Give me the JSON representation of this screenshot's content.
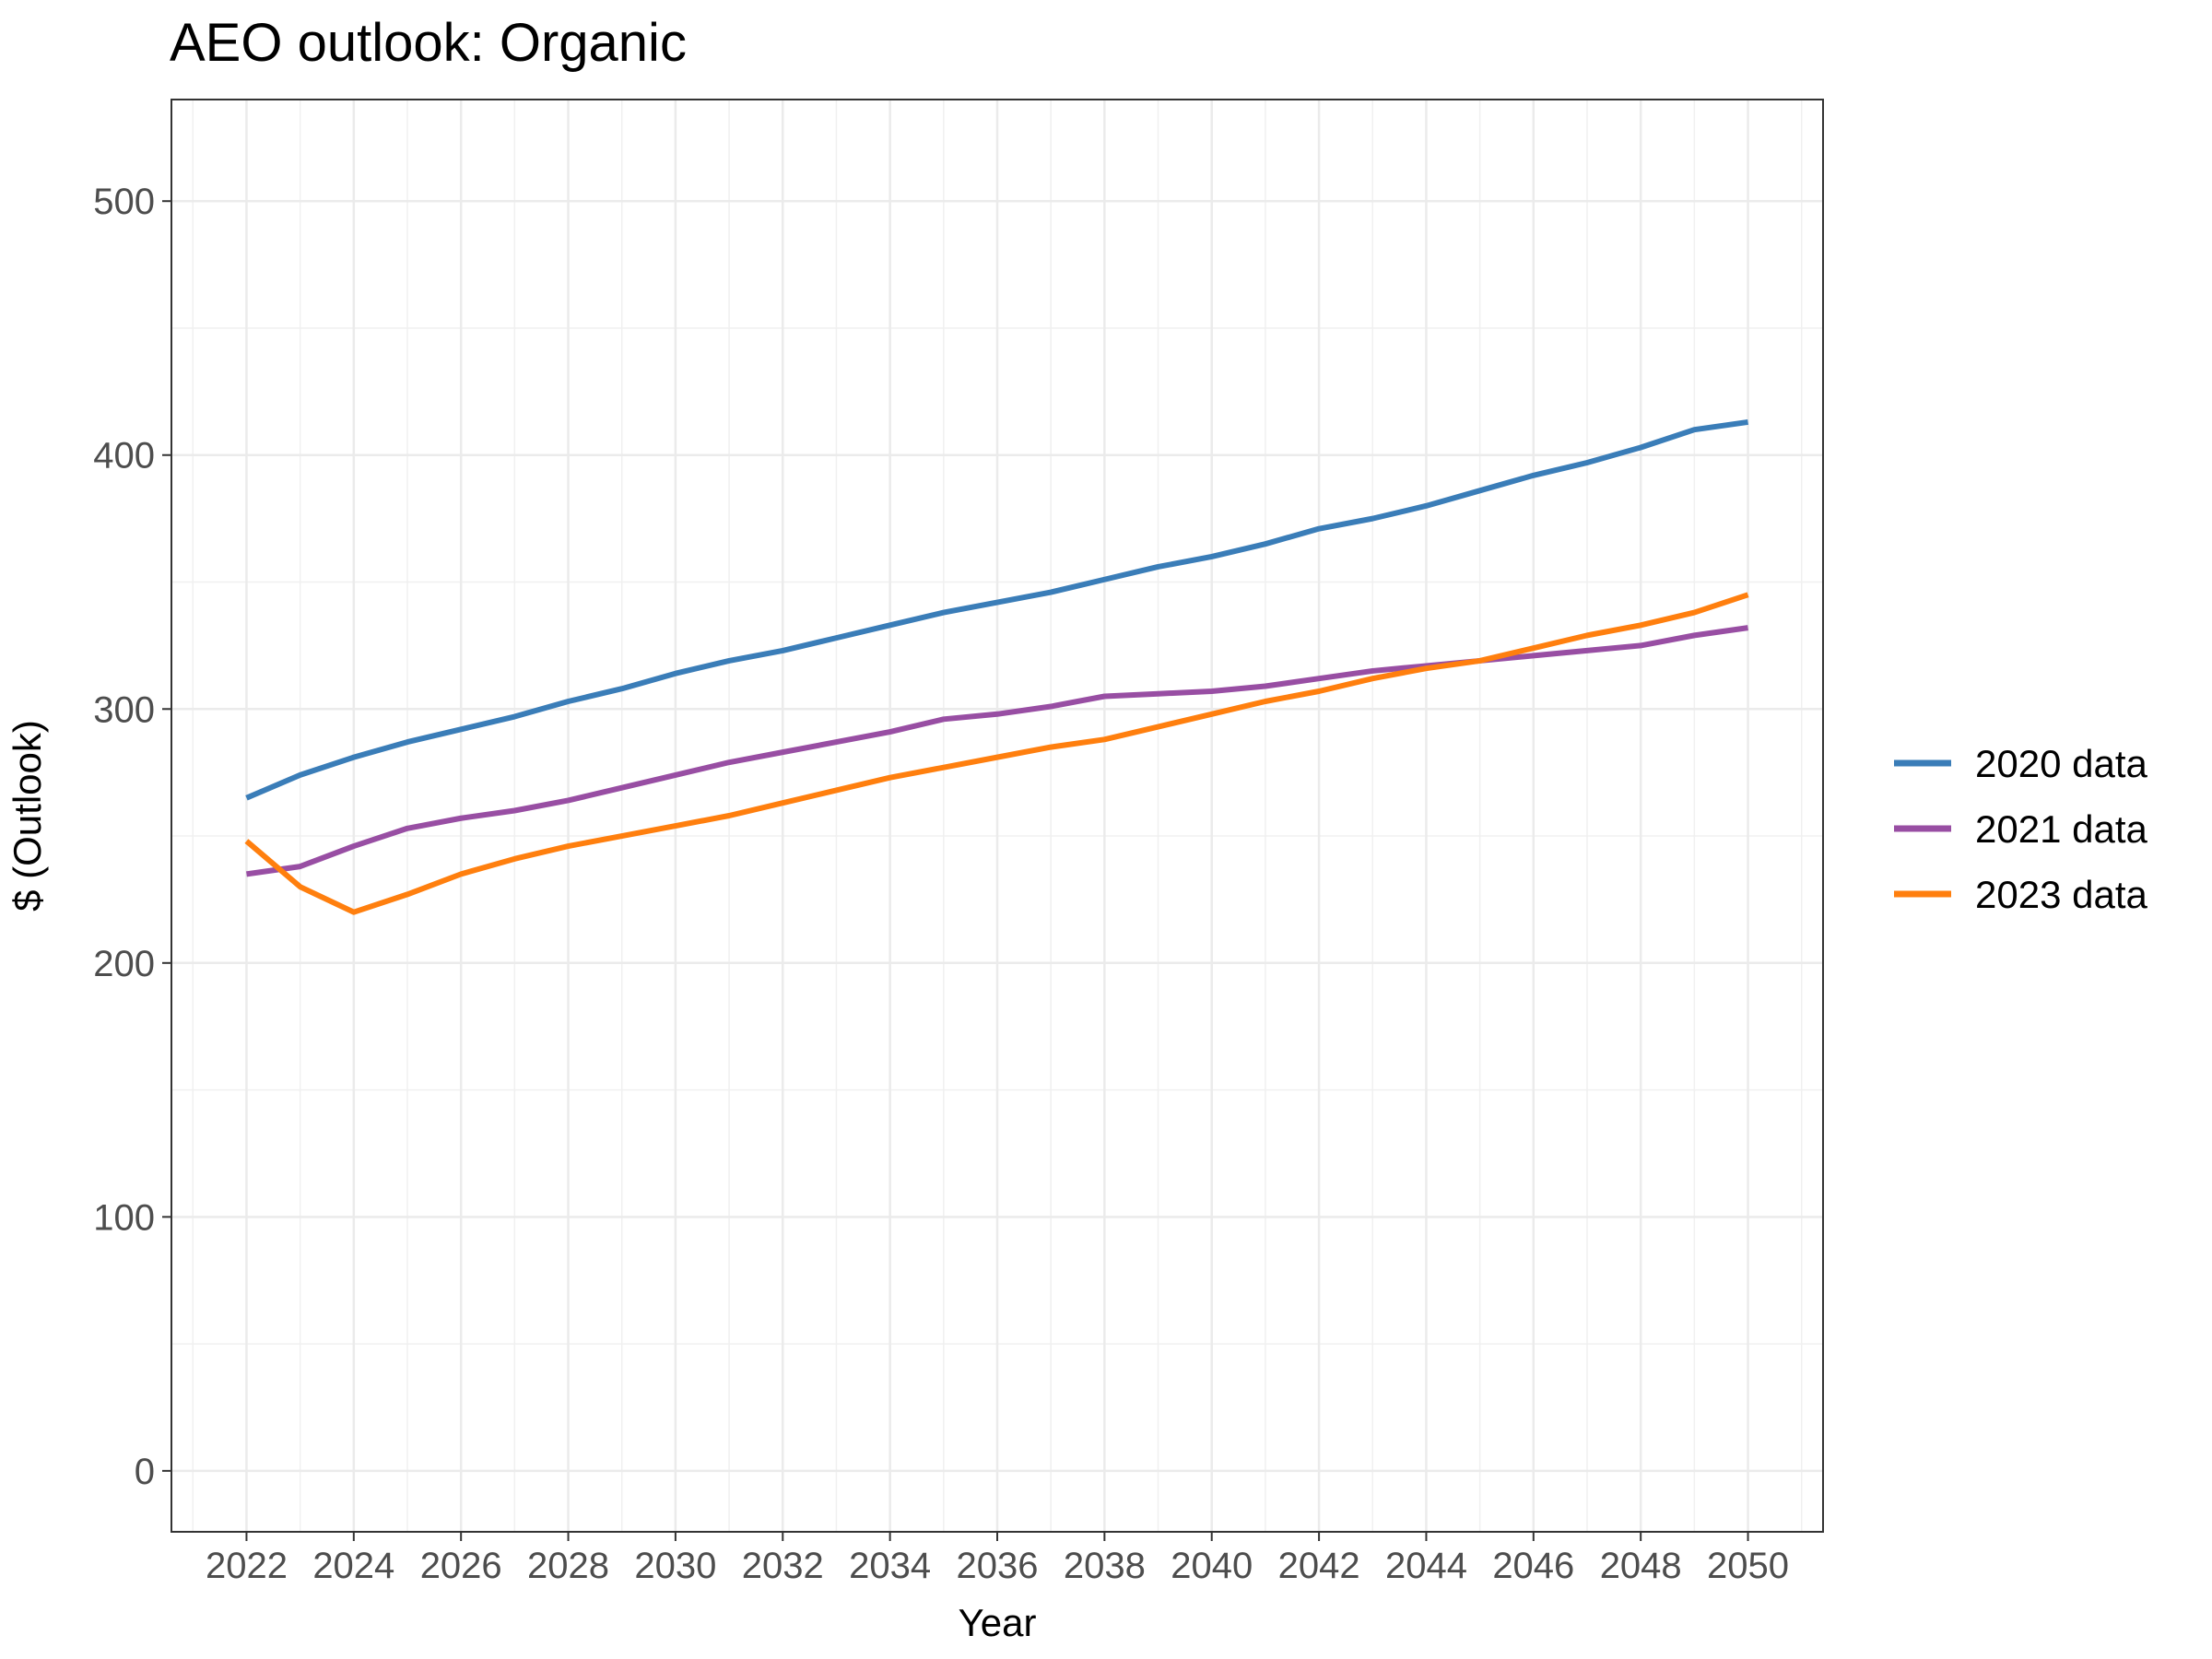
{
  "chart_data": {
    "type": "line",
    "title": "AEO outlook: Organic",
    "xlabel": "Year",
    "ylabel": "$ (Outlook)",
    "xlim": [
      2020.6,
      2051.4
    ],
    "ylim": [
      -24,
      540
    ],
    "x_ticks": [
      2022,
      2024,
      2026,
      2028,
      2030,
      2032,
      2034,
      2036,
      2038,
      2040,
      2042,
      2044,
      2046,
      2048,
      2050
    ],
    "x_tick_labels": [
      "2022",
      "2024",
      "2026",
      "2028",
      "2030",
      "2032",
      "2034",
      "2036",
      "2038",
      "2040",
      "2042",
      "2044",
      "2046",
      "2048",
      "2050"
    ],
    "y_ticks": [
      0,
      100,
      200,
      300,
      400,
      500
    ],
    "y_tick_labels": [
      "0",
      "100",
      "200",
      "300",
      "400",
      "500"
    ],
    "grid": true,
    "legend_position": "right",
    "x": [
      2022,
      2023,
      2024,
      2025,
      2026,
      2027,
      2028,
      2029,
      2030,
      2031,
      2032,
      2033,
      2034,
      2035,
      2036,
      2037,
      2038,
      2039,
      2040,
      2041,
      2042,
      2043,
      2044,
      2045,
      2046,
      2047,
      2048,
      2049,
      2050
    ],
    "series": [
      {
        "name": "2020 data",
        "color": "#3a7db8",
        "values": [
          265,
          274,
          281,
          287,
          292,
          297,
          303,
          308,
          314,
          319,
          323,
          328,
          333,
          338,
          342,
          346,
          351,
          356,
          360,
          365,
          371,
          375,
          380,
          386,
          392,
          397,
          403,
          410,
          413
        ]
      },
      {
        "name": "2021 data",
        "color": "#984ea3",
        "values": [
          235,
          238,
          246,
          253,
          257,
          260,
          264,
          269,
          274,
          279,
          283,
          287,
          291,
          296,
          298,
          301,
          305,
          306,
          307,
          309,
          312,
          315,
          317,
          319,
          321,
          323,
          325,
          329,
          332
        ]
      },
      {
        "name": "2023 data",
        "color": "#ff7f0e",
        "values": [
          248,
          230,
          220,
          227,
          235,
          241,
          246,
          250,
          254,
          258,
          263,
          268,
          273,
          277,
          281,
          285,
          288,
          293,
          298,
          303,
          307,
          312,
          316,
          319,
          324,
          329,
          333,
          338,
          345
        ]
      }
    ]
  }
}
